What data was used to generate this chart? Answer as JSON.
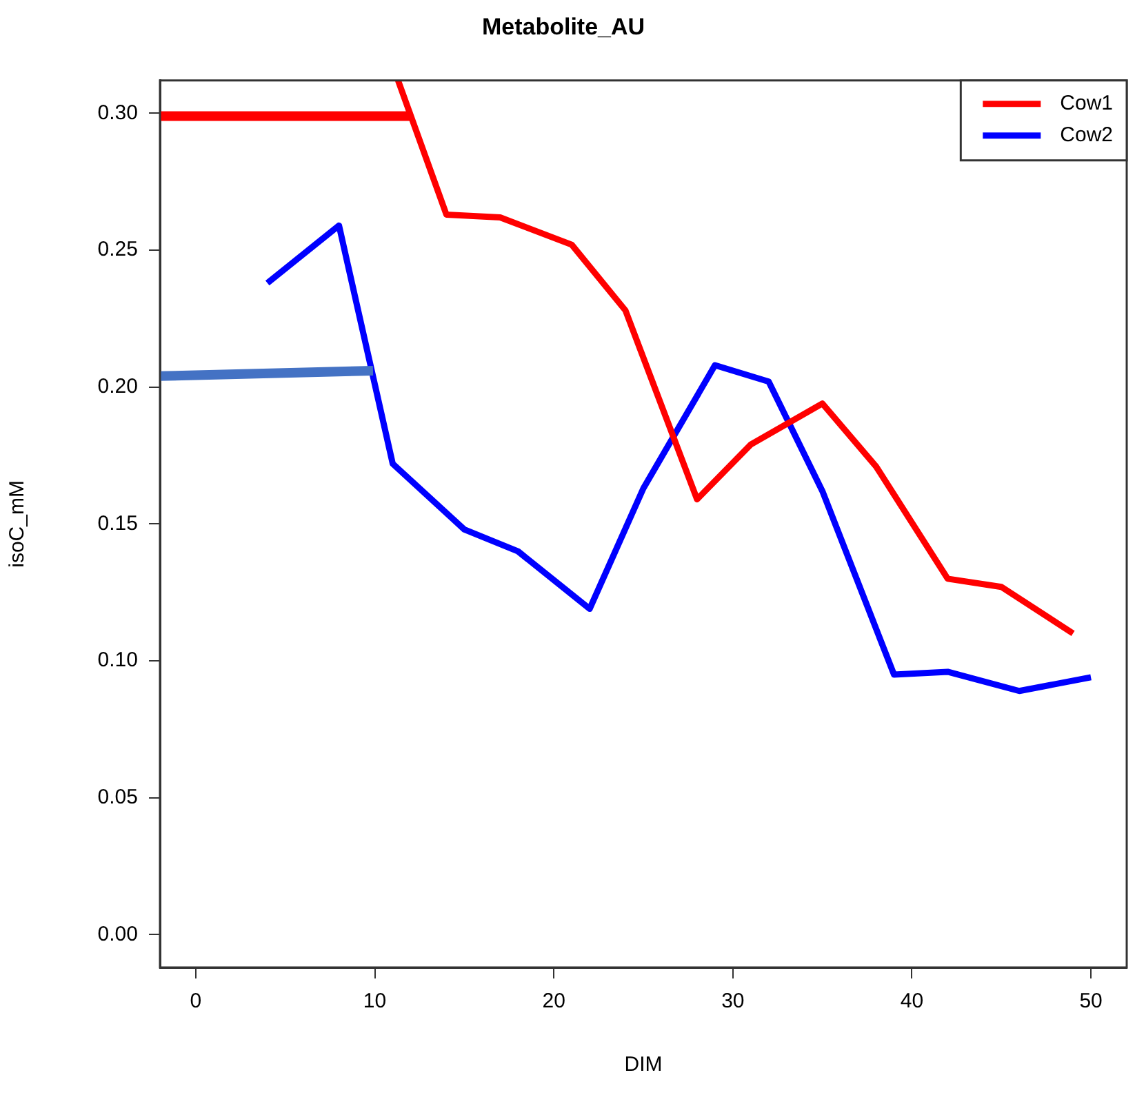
{
  "chart_data": {
    "type": "line",
    "title": "Metabolite_AU",
    "xlabel": "DIM",
    "ylabel": "isoC_mM",
    "xlim": [
      -2,
      52
    ],
    "xticks": [
      0,
      10,
      20,
      30,
      40,
      50
    ],
    "ylim": [
      -0.012,
      0.312
    ],
    "yticks": [
      {
        "value": 0,
        "label": "0.00"
      },
      0.05,
      {
        "value": 0.1,
        "label": "0.10"
      },
      0.15,
      {
        "value": 0.2,
        "label": "0.20"
      },
      0.25,
      {
        "value": 0.3,
        "label": "0.30"
      }
    ],
    "grid": false,
    "legend": "top right",
    "line_style": "solid",
    "marker": "none",
    "series": [
      {
        "name": "Cow1",
        "color": "#ff0000",
        "x": [
          11.3,
          14,
          17,
          21,
          24,
          28,
          31,
          35,
          38,
          42,
          45,
          49
        ],
        "values": [
          0.312,
          0.263,
          0.262,
          0.252,
          0.228,
          0.159,
          0.179,
          0.194,
          0.171,
          0.13,
          0.127,
          0.11
        ]
      },
      {
        "name": "Cow2",
        "color": "#0000ff",
        "x": [
          4,
          8,
          11,
          15,
          18,
          22,
          25,
          29,
          32,
          35,
          39,
          42,
          46,
          50
        ],
        "values": [
          0.238,
          0.259,
          0.172,
          0.148,
          0.14,
          0.119,
          0.163,
          0.208,
          0.202,
          0.162,
          0.095,
          0.096,
          0.089,
          0.094
        ]
      },
      {
        "color": "#ff0000",
        "x": [
          -2,
          12.1
        ],
        "values": [
          0.299,
          0.299
        ]
      },
      {
        "color": "#4472c4",
        "x": [
          -2,
          9.9
        ],
        "values": [
          0.204,
          0.206
        ]
      }
    ]
  }
}
